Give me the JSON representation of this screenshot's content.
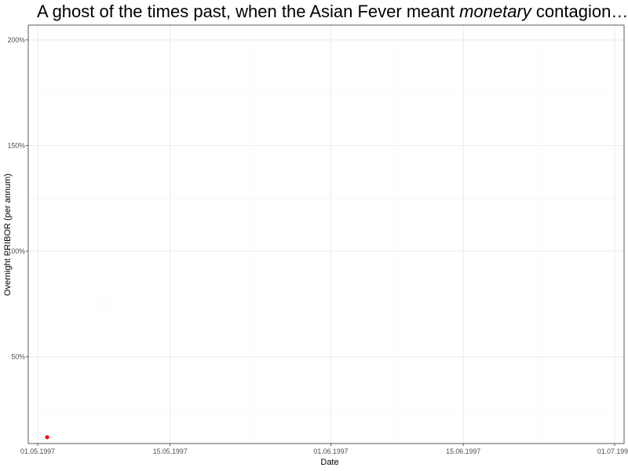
{
  "title": {
    "part1": "A ghost of the times past, when the Asian Fever meant ",
    "emphasis": "monetary",
    "part2": " contagion…"
  },
  "chart_data": {
    "type": "scatter",
    "xlabel": "Date",
    "ylabel": "Overnight PRIBOR (per annum)",
    "xlim": [
      "1997-04-30",
      "1997-07-02"
    ],
    "ylim": [
      0.09,
      2.07
    ],
    "x_ticks": [
      {
        "value": "1997-05-01",
        "label": "01.05.1997"
      },
      {
        "value": "1997-05-15",
        "label": "15.05.1997"
      },
      {
        "value": "1997-06-01",
        "label": "01.06.1997"
      },
      {
        "value": "1997-06-15",
        "label": "15.06.1997"
      },
      {
        "value": "1997-07-01",
        "label": "01.07.1997"
      }
    ],
    "y_ticks": [
      {
        "value": 0.5,
        "label": "50%"
      },
      {
        "value": 1.0,
        "label": "100%"
      },
      {
        "value": 1.5,
        "label": "150%"
      },
      {
        "value": 2.0,
        "label": "200%"
      }
    ],
    "grid": true,
    "series": [
      {
        "color": "#ff0000",
        "points": [
          {
            "x": "1997-05-02",
            "y": 0.12
          }
        ]
      }
    ]
  }
}
